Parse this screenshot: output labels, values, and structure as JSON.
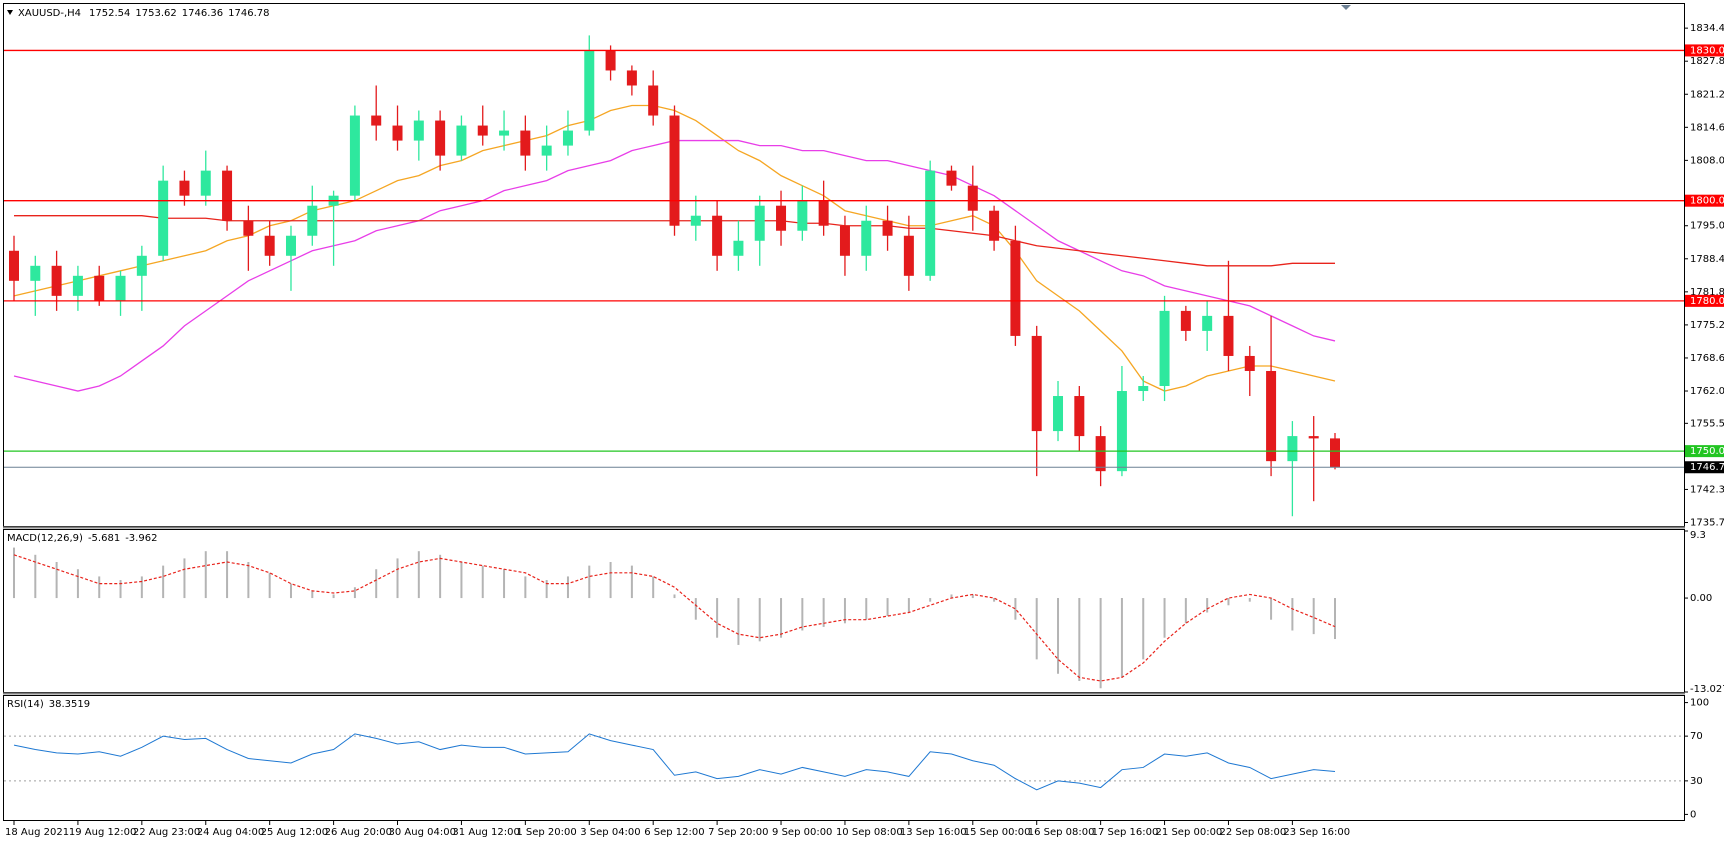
{
  "chart_data": [
    {
      "type": "candlestick",
      "title": "XAUUSD-,H4",
      "ohlc": [
        1752.54,
        1753.62,
        1746.36,
        1746.78
      ],
      "bull_color": "#2ee89e",
      "bear_color": "#e31a1c",
      "open": [
        1790,
        1784,
        1787,
        1781,
        1785,
        1780,
        1785,
        1789,
        1804,
        1801,
        1806,
        1796,
        1793,
        1789,
        1793,
        1799,
        1801,
        1817,
        1815,
        1812,
        1816,
        1809,
        1815,
        1813,
        1814,
        1809,
        1811,
        1814,
        1830,
        1826,
        1823,
        1817,
        1795,
        1797,
        1789,
        1792,
        1799,
        1794,
        1800,
        1795,
        1789,
        1796,
        1793,
        1785,
        1806,
        1803,
        1798,
        1792,
        1773,
        1754,
        1761,
        1753,
        1746,
        1762,
        1763,
        1778,
        1774,
        1777,
        1769,
        1766,
        1748,
        1753,
        1752.54
      ],
      "high": [
        1793,
        1789,
        1790,
        1787,
        1787,
        1786,
        1791,
        1807,
        1806,
        1810,
        1807,
        1799,
        1796,
        1795,
        1803,
        1802,
        1819,
        1823,
        1819,
        1818,
        1818,
        1817,
        1819,
        1818,
        1817,
        1815,
        1818,
        1833,
        1831,
        1827,
        1826,
        1819,
        1801,
        1800,
        1796,
        1801,
        1802,
        1803,
        1804,
        1797,
        1799,
        1799,
        1797,
        1808,
        1807,
        1807,
        1799,
        1795,
        1775,
        1764,
        1763,
        1755,
        1767,
        1765,
        1781,
        1779,
        1780,
        1788,
        1771,
        1777,
        1756,
        1757,
        1753.62
      ],
      "low": [
        1780,
        1777,
        1778,
        1778,
        1779,
        1777,
        1778,
        1788,
        1799,
        1799,
        1794,
        1786,
        1787,
        1782,
        1791,
        1787,
        1800,
        1812,
        1810,
        1808,
        1806,
        1808,
        1811,
        1810,
        1806,
        1806,
        1809,
        1813,
        1824,
        1821,
        1815,
        1793,
        1792,
        1786,
        1786,
        1787,
        1791,
        1792,
        1793,
        1785,
        1786,
        1790,
        1782,
        1784,
        1802,
        1794,
        1790,
        1771,
        1745,
        1752,
        1750,
        1743,
        1745,
        1760,
        1760,
        1772,
        1770,
        1766,
        1761,
        1745,
        1737,
        1740,
        1746.36
      ],
      "close": [
        1784,
        1787,
        1781,
        1785,
        1780,
        1785,
        1789,
        1804,
        1801,
        1806,
        1796,
        1793,
        1789,
        1793,
        1799,
        1801,
        1817,
        1815,
        1812,
        1816,
        1809,
        1815,
        1813,
        1814,
        1809,
        1811,
        1814,
        1830,
        1826,
        1823,
        1817,
        1795,
        1797,
        1789,
        1792,
        1799,
        1794,
        1800,
        1795,
        1789,
        1796,
        1793,
        1785,
        1806,
        1803,
        1798,
        1792,
        1773,
        1754,
        1761,
        1753,
        1746,
        1762,
        1763,
        1778,
        1774,
        1777,
        1769,
        1766,
        1748,
        1753,
        1752.54,
        1746.78
      ],
      "series": [
        {
          "color": "#f5a623",
          "values": [
            1781,
            1782,
            1783,
            1784,
            1785,
            1786,
            1787,
            1788,
            1789,
            1790,
            1792,
            1793,
            1795,
            1796,
            1798,
            1799,
            1800,
            1802,
            1804,
            1805,
            1807,
            1808,
            1810,
            1811,
            1812,
            1813,
            1815,
            1816,
            1818,
            1819,
            1819,
            1818,
            1816,
            1813,
            1810,
            1808,
            1805,
            1803,
            1801,
            1798,
            1797,
            1796,
            1795,
            1795,
            1796,
            1797,
            1795,
            1790,
            1784,
            1781,
            1778,
            1774,
            1770,
            1764,
            1762,
            1763,
            1765,
            1766,
            1767,
            1767,
            1766,
            1765,
            1764
          ]
        },
        {
          "color": "#e83ee8",
          "values": [
            1765,
            1764,
            1763,
            1762,
            1763,
            1765,
            1768,
            1771,
            1775,
            1778,
            1781,
            1784,
            1786,
            1788,
            1790,
            1791,
            1792,
            1794,
            1795,
            1796,
            1798,
            1799,
            1800,
            1802,
            1803,
            1804,
            1806,
            1807,
            1808,
            1810,
            1811,
            1812,
            1812,
            1812,
            1812,
            1811,
            1811,
            1810,
            1810,
            1809,
            1808,
            1808,
            1807,
            1806,
            1805,
            1803,
            1801,
            1798,
            1795,
            1792,
            1790,
            1788,
            1786,
            1785,
            1783,
            1782,
            1781,
            1780,
            1779,
            1777,
            1775,
            1773,
            1772
          ]
        },
        {
          "color": "#e8241c",
          "values": [
            1797,
            1797,
            1797,
            1797,
            1797,
            1797,
            1797,
            1796.5,
            1796.5,
            1796.5,
            1796,
            1796,
            1796,
            1796,
            1796,
            1796,
            1796,
            1796,
            1796,
            1796,
            1796,
            1796,
            1796,
            1796,
            1796,
            1796,
            1796,
            1796,
            1796,
            1796,
            1796,
            1796,
            1796,
            1796,
            1796,
            1796,
            1796,
            1795.5,
            1795.5,
            1795,
            1795,
            1795,
            1794.5,
            1794.5,
            1794,
            1793.5,
            1793,
            1792,
            1791,
            1790.5,
            1790,
            1789.5,
            1789,
            1788.5,
            1788,
            1787.5,
            1787,
            1787,
            1787,
            1787,
            1787.5,
            1787.5,
            1787.5
          ]
        }
      ],
      "levels": [
        {
          "value": 1830,
          "label": "1830.00",
          "color": "#ff0000"
        },
        {
          "value": 1800,
          "label": "1800.00",
          "color": "#ff0000"
        },
        {
          "value": 1780,
          "label": "1780.00",
          "color": "#ff0000"
        },
        {
          "value": 1750,
          "label": "1750.00",
          "color": "#22c522"
        }
      ],
      "price": 1746.78,
      "price_color": "#6c8094",
      "ylim": [
        1735.05,
        1839.07
      ],
      "yticks": [
        1834.45,
        1827.85,
        1821.25,
        1814.65,
        1808.05,
        {
          "value": 1795,
          "label": "1795.00"
        },
        {
          "value": 1788.4,
          "label": "1788.40"
        },
        {
          "value": 1781.8,
          "label": "1781.80"
        },
        {
          "value": 1775.2,
          "label": "1775.20"
        },
        {
          "value": 1768.6,
          "label": "1768.60"
        },
        {
          "value": 1762,
          "label": "1762.00"
        },
        1755.55,
        1742.35,
        1735.75
      ],
      "xticks": [
        {
          "value": 0,
          "label": "18 Aug 2021"
        },
        {
          "value": 3,
          "label": "19 Aug 12:00"
        },
        {
          "value": 6,
          "label": "22 Aug 23:00"
        },
        {
          "value": 9,
          "label": "24 Aug 04:00"
        },
        {
          "value": 12,
          "label": "25 Aug 12:00"
        },
        {
          "value": 15,
          "label": "26 Aug 20:00"
        },
        {
          "value": 18,
          "label": "30 Aug 04:00"
        },
        {
          "value": 21,
          "label": "31 Aug 12:00"
        },
        {
          "value": 24,
          "label": "1 Sep 20:00"
        },
        {
          "value": 27,
          "label": "3 Sep 04:00"
        },
        {
          "value": 30,
          "label": "6 Sep 12:00"
        },
        {
          "value": 33,
          "label": "7 Sep 20:00"
        },
        {
          "value": 36,
          "label": "9 Sep 00:00"
        },
        {
          "value": 39,
          "label": "10 Sep 08:00"
        },
        {
          "value": 42,
          "label": "13 Sep 16:00"
        },
        {
          "value": 45,
          "label": "15 Sep 00:00"
        },
        {
          "value": 48,
          "label": "16 Sep 08:00"
        },
        {
          "value": 51,
          "label": "17 Sep 16:00"
        },
        {
          "value": 54,
          "label": "21 Sep 00:00"
        },
        {
          "value": 57,
          "label": "22 Sep 08:00"
        },
        {
          "value": 60,
          "label": "23 Sep 16:00"
        }
      ]
    },
    {
      "type": "macd",
      "title": "MACD(12,26,9)",
      "readout": [
        -5.681,
        -3.962
      ],
      "histogram": {
        "color": "#b4b4b4",
        "values": [
          7,
          6,
          5,
          4,
          3,
          2.5,
          3,
          4.5,
          5.5,
          6.5,
          6.5,
          5,
          3.5,
          2,
          1,
          0.5,
          1.5,
          4,
          5.5,
          6.5,
          6,
          5,
          4.5,
          4,
          3,
          2.5,
          3,
          4.5,
          5,
          4.5,
          3,
          0.5,
          -3,
          -5.5,
          -6.5,
          -6,
          -5.5,
          -4.5,
          -4,
          -3.5,
          -3,
          -2.5,
          -2,
          -0.5,
          0.5,
          0.5,
          -0.5,
          -3,
          -8.5,
          -10.5,
          -11.5,
          -12.5,
          -11,
          -8.5,
          -5.5,
          -3.5,
          -2,
          -1,
          -0.5,
          -3,
          -4.5,
          -5,
          -5.681
        ]
      },
      "signal": {
        "color": "#e8241c",
        "values": [
          6,
          5,
          4,
          3,
          2,
          2,
          2.3,
          3,
          4,
          4.5,
          5,
          4.5,
          3.5,
          2,
          1,
          0.7,
          1,
          2.5,
          4,
          5,
          5.5,
          5,
          4.5,
          4,
          3.5,
          2,
          2,
          3,
          3.5,
          3.5,
          3,
          1.5,
          -1,
          -3.5,
          -5,
          -5.5,
          -5,
          -4,
          -3.5,
          -3,
          -3,
          -2.5,
          -2,
          -1,
          0,
          0.5,
          0,
          -1.5,
          -5,
          -8.5,
          -11,
          -11.5,
          -11,
          -9,
          -6,
          -3.5,
          -1.5,
          0,
          0.5,
          0,
          -1.5,
          -2.7,
          -3.962
        ]
      },
      "ylim": [
        -13.027,
        9.3
      ],
      "yticks": [
        9.3,
        {
          "value": 0,
          "label": "0.00"
        },
        -13.027
      ]
    },
    {
      "type": "line",
      "title": "RSI(14)",
      "readout": [
        38.3519
      ],
      "series": [
        {
          "color": "#1e78d2",
          "values": [
            62,
            58,
            55,
            54,
            56,
            52,
            60,
            70,
            67,
            68,
            58,
            50,
            48,
            46,
            54,
            58,
            72,
            68,
            63,
            65,
            58,
            62,
            60,
            60,
            54,
            55,
            56,
            72,
            66,
            62,
            58,
            35,
            38,
            32,
            34,
            40,
            36,
            42,
            38,
            34,
            40,
            38,
            34,
            56,
            54,
            48,
            44,
            32,
            22,
            30,
            28,
            24,
            40,
            42,
            54,
            52,
            55,
            46,
            42,
            32,
            36,
            40,
            38.3519
          ]
        }
      ],
      "levels": [
        70,
        30
      ],
      "ylim": [
        -5,
        105
      ],
      "yticks": [
        100,
        70,
        30,
        0
      ]
    }
  ]
}
